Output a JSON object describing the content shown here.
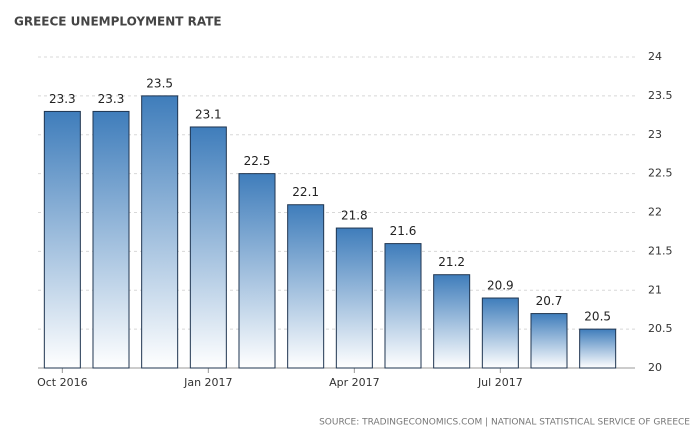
{
  "chart_data": {
    "type": "bar",
    "title": "GREECE UNEMPLOYMENT RATE",
    "categories": [
      "Oct 2016",
      null,
      null,
      "Jan 2017",
      null,
      null,
      "Apr 2017",
      null,
      null,
      "Jul 2017",
      null,
      null
    ],
    "values": [
      23.3,
      23.3,
      23.5,
      23.1,
      22.5,
      22.1,
      21.8,
      21.6,
      21.2,
      20.9,
      20.7,
      20.5
    ],
    "color": "#3f7dbb",
    "ylim": [
      20,
      24
    ],
    "yticks": [
      20,
      20.5,
      21,
      21.5,
      22,
      22.5,
      23,
      23.5,
      24
    ],
    "grid": true,
    "source": "SOURCE: TRADINGECONOMICS.COM | NATIONAL STATISTICAL SERVICE OF GREECE"
  }
}
